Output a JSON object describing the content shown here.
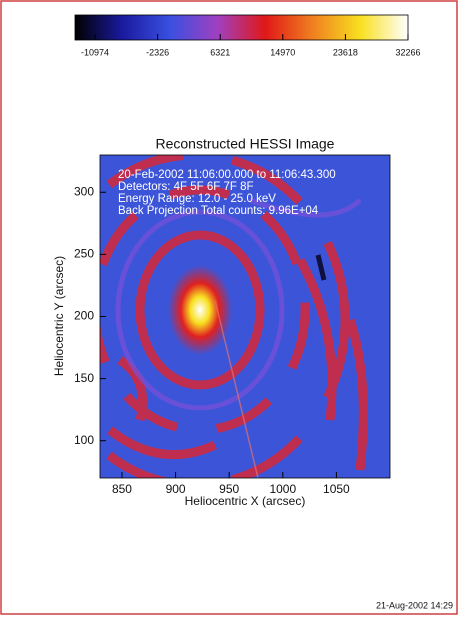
{
  "chart_data": {
    "type": "image",
    "title": "Reconstructed HESSI Image",
    "annotations": [
      "20-Feb-2002 11:06:00.000 to 11:06:43.300",
      "Detectors: 4F 5F 6F 7F 8F",
      "Energy Range: 12.0 - 25.0 keV",
      "Back Projection   Total counts: 9.96E+04"
    ],
    "x_label": "Heliocentric X (arcsec)",
    "y_label": "Heliocentric Y (arcsec)",
    "xlim": [
      829.5,
      1100
    ],
    "xticks": [
      850,
      900,
      950,
      1000,
      1050
    ],
    "ylim": [
      70,
      330
    ],
    "yticks": [
      100,
      150,
      200,
      250,
      300
    ],
    "colorbar": {
      "lim": [
        -13740,
        32266
      ],
      "ticks": [
        -10974,
        -2326,
        6321,
        14970,
        23618,
        32266
      ],
      "colormap": [
        "#000000",
        "#1a1aa0",
        "#3a50e0",
        "#a040c0",
        "#e01818",
        "#f08020",
        "#f8e020",
        "#ffffff"
      ]
    },
    "footer": "21-Aug-2002 14:29"
  }
}
